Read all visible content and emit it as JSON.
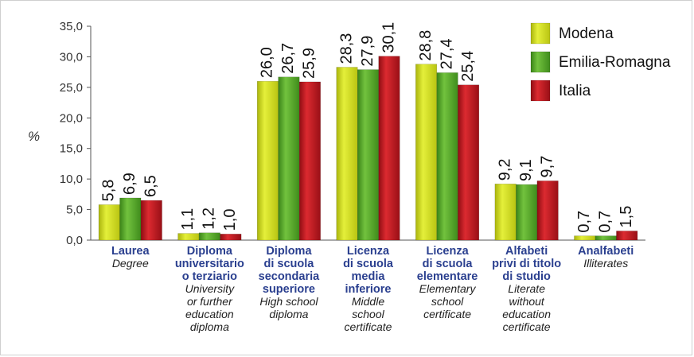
{
  "chart_data": {
    "type": "bar",
    "unit_label": "%",
    "ylim": [
      0,
      35
    ],
    "y_ticks": [
      "35,0",
      "30,0",
      "25,0",
      "20,0",
      "15,0",
      "10,0",
      "5,0",
      "0,0"
    ],
    "grid": false,
    "legend_position": "top-right",
    "categories": [
      {
        "it": [
          "Laurea"
        ],
        "en": [
          "Degree"
        ]
      },
      {
        "it": [
          "Diploma",
          "universitario",
          "o terziario"
        ],
        "en": [
          "University",
          "or further",
          "education",
          "diploma"
        ]
      },
      {
        "it": [
          "Diploma",
          "di scuola",
          "secondaria",
          "superiore"
        ],
        "en": [
          "High school",
          "diploma"
        ]
      },
      {
        "it": [
          "Licenza",
          "di scuola",
          "media",
          "inferiore"
        ],
        "en": [
          "Middle",
          "school",
          "certificate"
        ]
      },
      {
        "it": [
          "Licenza",
          "di scuola",
          "elementare"
        ],
        "en": [
          "Elementary",
          "school",
          "certificate"
        ]
      },
      {
        "it": [
          "Alfabeti",
          "privi di titolo",
          "di studio"
        ],
        "en": [
          "Literate",
          "without",
          "education",
          "certificate"
        ]
      },
      {
        "it": [
          "Analfabeti"
        ],
        "en": [
          "Illiterates"
        ]
      }
    ],
    "series": [
      {
        "name": "Modena",
        "color": "#d4e21c",
        "values": [
          5.8,
          1.1,
          26.0,
          28.3,
          28.8,
          9.2,
          0.7
        ],
        "labels": [
          "5,8",
          "1,1",
          "26,0",
          "28,3",
          "28,8",
          "9,2",
          "0,7"
        ]
      },
      {
        "name": "Emilia-Romagna",
        "color": "#5aac2a",
        "values": [
          6.9,
          1.2,
          26.7,
          27.9,
          27.4,
          9.1,
          0.7
        ],
        "labels": [
          "6,9",
          "1,2",
          "26,7",
          "27,9",
          "27,4",
          "9,1",
          "0,7"
        ]
      },
      {
        "name": "Italia",
        "color": "#c2161e",
        "values": [
          6.5,
          1.0,
          25.9,
          30.1,
          25.4,
          9.7,
          1.5
        ],
        "labels": [
          "6,5",
          "1,0",
          "25,9",
          "30,1",
          "25,4",
          "9,7",
          "1,5"
        ]
      }
    ]
  }
}
